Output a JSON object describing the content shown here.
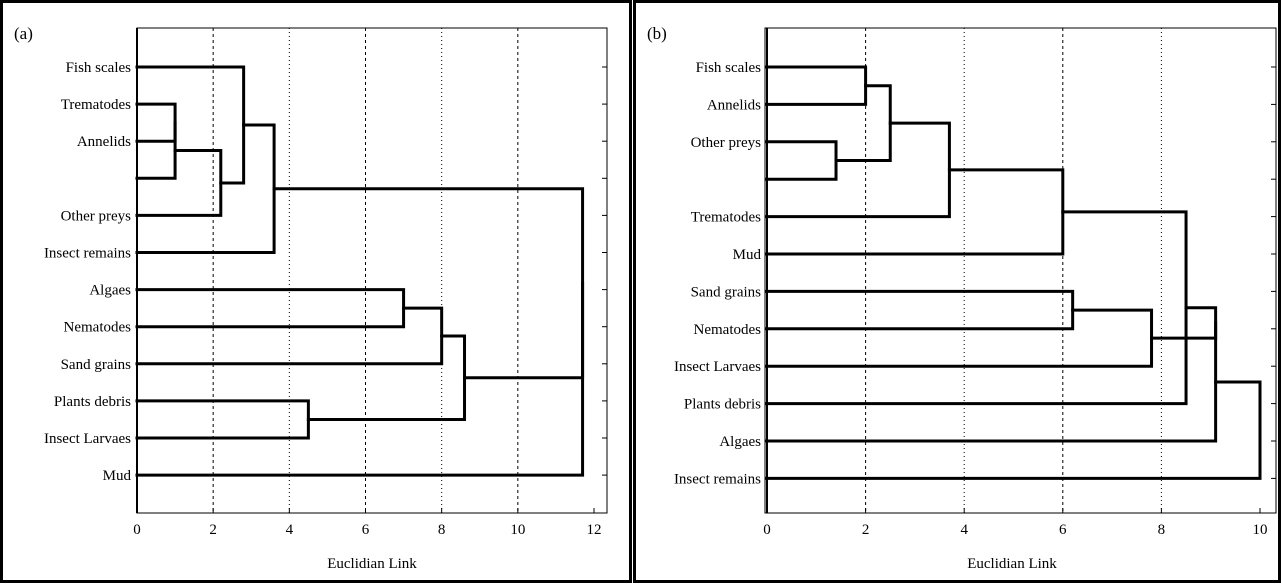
{
  "chart_data": [
    {
      "type": "dendrogram",
      "panel_label": "(a)",
      "xlabel": "Euclidian Link",
      "xlim": [
        0,
        12
      ],
      "xticks": [
        "0",
        "2",
        "4",
        "6",
        "8",
        "10",
        "12"
      ],
      "leaves": [
        "Fish scales",
        "Trematodes",
        "Annelids",
        "",
        "Other preys",
        "Insect remains",
        "Algaes",
        "Nematodes",
        "Sand grains",
        "Plants debris",
        "Insect Larvaes",
        "Mud"
      ],
      "merges": [
        {
          "a": 1,
          "b": 2,
          "height": 1.0
        },
        {
          "a": 12,
          "b": 3,
          "height": 1.0
        },
        {
          "a": 13,
          "b": 4,
          "height": 2.2
        },
        {
          "a": 0,
          "b": 14,
          "height": 2.8
        },
        {
          "a": 15,
          "b": 5,
          "height": 3.6
        },
        {
          "a": 6,
          "b": 7,
          "height": 7.0
        },
        {
          "a": 17,
          "b": 8,
          "height": 8.0
        },
        {
          "a": 9,
          "b": 10,
          "height": 4.5
        },
        {
          "a": 18,
          "b": 19,
          "height": 8.6
        },
        {
          "a": 16,
          "b": 20,
          "height": 11.7
        },
        {
          "a": 21,
          "b": 11,
          "height": 11.7
        }
      ]
    },
    {
      "type": "dendrogram",
      "panel_label": "(b)",
      "xlabel": "Euclidian Link",
      "xlim": [
        0,
        10
      ],
      "xticks": [
        "0",
        "2",
        "4",
        "6",
        "8",
        "10"
      ],
      "leaves": [
        "Fish scales",
        "Annelids",
        "Other preys",
        "",
        "Trematodes",
        "Mud",
        "Sand grains",
        "Nematodes",
        "Insect Larvaes",
        "Plants debris",
        "Algaes",
        "Insect remains"
      ],
      "merges": [
        {
          "a": 2,
          "b": 3,
          "height": 1.4
        },
        {
          "a": 0,
          "b": 1,
          "height": 2.0
        },
        {
          "a": 13,
          "b": 12,
          "height": 2.5
        },
        {
          "a": 14,
          "b": 4,
          "height": 3.7
        },
        {
          "a": 15,
          "b": 5,
          "height": 6.0
        },
        {
          "a": 6,
          "b": 7,
          "height": 6.2
        },
        {
          "a": 17,
          "b": 8,
          "height": 7.8
        },
        {
          "a": 16,
          "b": 9,
          "height": 8.5
        },
        {
          "a": 18,
          "b": 19,
          "height": 9.1
        },
        {
          "a": 20,
          "b": 10,
          "height": 9.1
        },
        {
          "a": 21,
          "b": 11,
          "height": 10.0
        }
      ]
    }
  ]
}
